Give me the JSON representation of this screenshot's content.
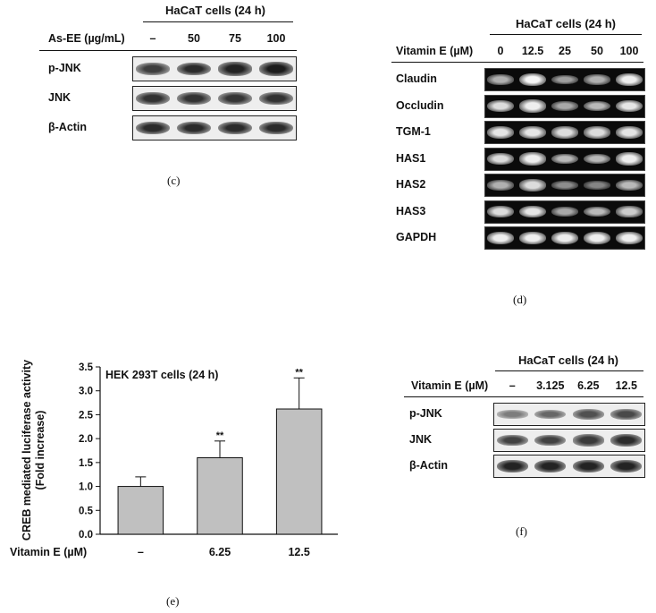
{
  "panel_c": {
    "header": "HaCaT cells (24 h)",
    "treatment_label": "As-EE (µg/mL)",
    "columns": [
      "–",
      "50",
      "75",
      "100"
    ],
    "rows": [
      {
        "label": "p-JNK",
        "intensity": [
          0.72,
          0.85,
          0.9,
          0.95
        ]
      },
      {
        "label": "JNK",
        "intensity": [
          0.8,
          0.8,
          0.78,
          0.8
        ]
      },
      {
        "label": "β-Actin",
        "intensity": [
          0.85,
          0.85,
          0.85,
          0.85
        ]
      }
    ],
    "caption": "(c)"
  },
  "panel_d": {
    "header": "HaCaT cells (24 h)",
    "treatment_label": "Vitamin E (µM)",
    "columns": [
      "0",
      "12.5",
      "25",
      "50",
      "100"
    ],
    "rows": [
      {
        "label": "Claudin",
        "intensity": [
          0.55,
          0.95,
          0.45,
          0.55,
          0.9
        ]
      },
      {
        "label": "Occludin",
        "intensity": [
          0.8,
          0.9,
          0.5,
          0.6,
          0.85
        ]
      },
      {
        "label": "TGM-1",
        "intensity": [
          0.85,
          0.85,
          0.8,
          0.8,
          0.85
        ]
      },
      {
        "label": "HAS1",
        "intensity": [
          0.8,
          0.9,
          0.6,
          0.6,
          0.9
        ]
      },
      {
        "label": "HAS2",
        "intensity": [
          0.55,
          0.8,
          0.35,
          0.3,
          0.6
        ]
      },
      {
        "label": "HAS3",
        "intensity": [
          0.8,
          0.85,
          0.5,
          0.6,
          0.7
        ]
      },
      {
        "label": "GAPDH",
        "intensity": [
          0.9,
          0.9,
          0.9,
          0.9,
          0.9
        ]
      }
    ],
    "caption": "(d)"
  },
  "panel_f": {
    "header": "HaCaT cells (24 h)",
    "treatment_label": "Vitamin E (µM)",
    "columns": [
      "–",
      "3.125",
      "6.25",
      "12.5"
    ],
    "rows": [
      {
        "label": "p-JNK",
        "intensity": [
          0.3,
          0.45,
          0.6,
          0.65
        ]
      },
      {
        "label": "JNK",
        "intensity": [
          0.7,
          0.7,
          0.75,
          0.85
        ]
      },
      {
        "label": "β-Actin",
        "intensity": [
          0.9,
          0.9,
          0.9,
          0.9
        ]
      }
    ],
    "caption": "(f)"
  },
  "chart_data": {
    "type": "bar",
    "title": "HEK 293T cells (24 h)",
    "ylabel": "CREB mediated luciferase activity\n(Fold increase)",
    "xlabel": "Vitamin E (µM)",
    "categories": [
      "–",
      "6.25",
      "12.5"
    ],
    "values": [
      1.0,
      1.6,
      2.62
    ],
    "errors": [
      0.2,
      0.35,
      0.65
    ],
    "annotations": [
      "",
      "**",
      "**"
    ],
    "ylim": [
      0,
      3.5
    ],
    "yticks": [
      "0.0",
      "0.5",
      "1.0",
      "1.5",
      "2.0",
      "2.5",
      "3.0",
      "3.5"
    ],
    "bar_color": "#c0c0c0",
    "caption": "(e)"
  }
}
